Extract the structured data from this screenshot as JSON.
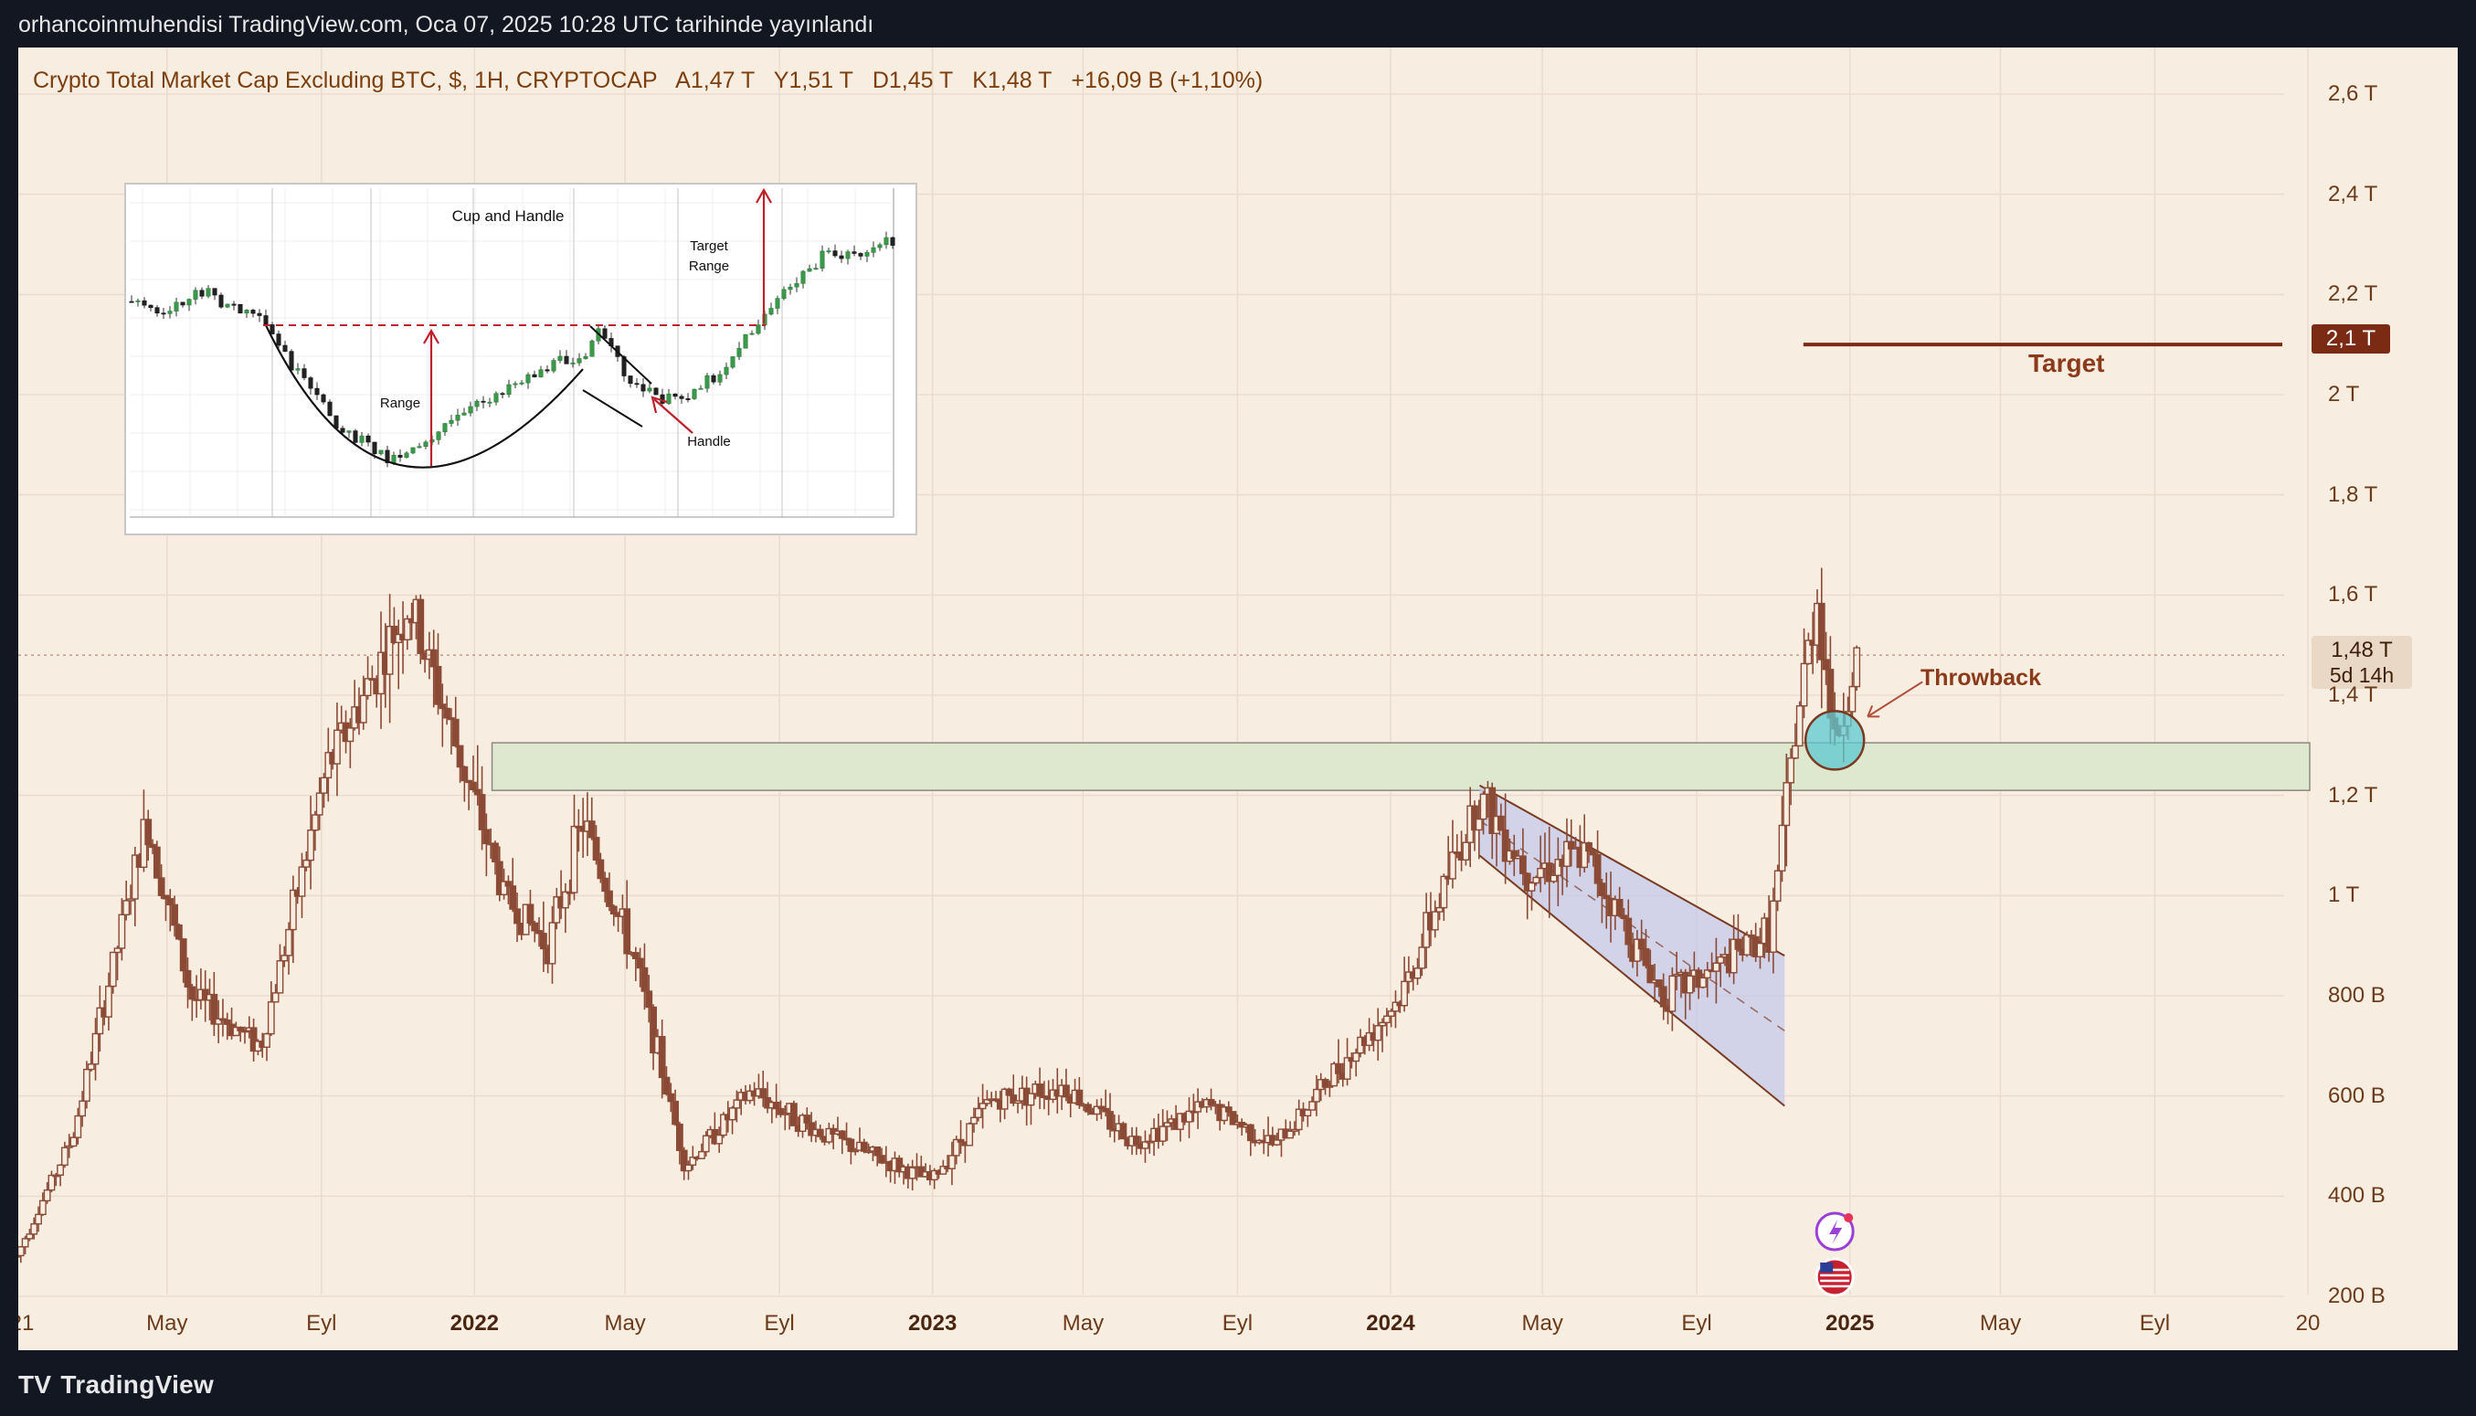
{
  "header": {
    "published_text": "orhancoinmuhendisi TradingView.com, Oca 07, 2025 10:28 UTC tarihinde yayınlandı"
  },
  "legend": {
    "title": "Crypto Total Market Cap Excluding BTC, $, 1H, CRYPTOCAP",
    "open": "A1,47 T",
    "high": "Y1,51 T",
    "low": "D1,45 T",
    "close": "K1,48 T",
    "change": "+16,09 B (+1,10%)"
  },
  "badges": {
    "target_price": "2,1 T",
    "last_price": "1,48 T",
    "countdown": "5d 14h"
  },
  "annotations": {
    "target": "Target",
    "throwback": "Throwback"
  },
  "inset": {
    "title": "Cup and Handle",
    "range": "Range",
    "target_range_1": "Target",
    "target_range_2": "Range",
    "handle": "Handle"
  },
  "footer": {
    "brand": "TradingView"
  },
  "colors": {
    "background": "#f8ede1",
    "candle": "#8b4a35",
    "target_line": "#7b2a14",
    "zone_fill": "#dde8cf",
    "channel_fill": "#c6c8ea",
    "throwback_circle": "#5cc8d0"
  },
  "chart_data": {
    "type": "candlestick",
    "title": "Crypto Total Market Cap Excluding BTC, $, 1H, CRYPTOCAP",
    "y_unit": "USD",
    "ylim": [
      200,
      2600
    ],
    "y_ticks": [
      "200 B",
      "400 B",
      "600 B",
      "800 B",
      "1 T",
      "1,2 T",
      "1,4 T",
      "1,6 T",
      "1,8 T",
      "2 T",
      "2,2 T",
      "2,4 T",
      "2,6 T"
    ],
    "y_tick_values": [
      200,
      400,
      600,
      800,
      1000,
      1200,
      1400,
      1600,
      1800,
      2000,
      2200,
      2400,
      2600
    ],
    "x_ticks": [
      "21",
      "May",
      "Eyl",
      "2022",
      "May",
      "Eyl",
      "2023",
      "May",
      "Eyl",
      "2024",
      "May",
      "Eyl",
      "2025",
      "May",
      "Eyl",
      "20"
    ],
    "x_tick_dates": [
      "2021-01-01",
      "2021-05-01",
      "2021-09-01",
      "2022-01-01",
      "2022-05-01",
      "2022-09-01",
      "2023-01-01",
      "2023-05-01",
      "2023-09-01",
      "2024-01-01",
      "2024-05-01",
      "2024-09-01",
      "2025-01-01",
      "2025-05-01",
      "2025-09-01",
      "2026-01-01"
    ],
    "series_path_billions": [
      [
        "2021-01-01",
        280
      ],
      [
        "2021-02-15",
        520
      ],
      [
        "2021-04-15",
        1150
      ],
      [
        "2021-05-20",
        800
      ],
      [
        "2021-07-15",
        700
      ],
      [
        "2021-09-05",
        1250
      ],
      [
        "2021-11-10",
        1580
      ],
      [
        "2021-12-20",
        1280
      ],
      [
        "2022-01-25",
        1000
      ],
      [
        "2022-03-01",
        900
      ],
      [
        "2022-03-28",
        1150
      ],
      [
        "2022-05-10",
        860
      ],
      [
        "2022-06-18",
        460
      ],
      [
        "2022-08-10",
        610
      ],
      [
        "2022-10-01",
        530
      ],
      [
        "2022-11-15",
        480
      ],
      [
        "2022-12-31",
        430
      ],
      [
        "2023-02-15",
        590
      ],
      [
        "2023-04-15",
        620
      ],
      [
        "2023-06-10",
        510
      ],
      [
        "2023-08-10",
        580
      ],
      [
        "2023-10-01",
        500
      ],
      [
        "2023-11-15",
        640
      ],
      [
        "2024-01-10",
        800
      ],
      [
        "2024-03-12",
        1200
      ],
      [
        "2024-04-20",
        1050
      ],
      [
        "2024-06-05",
        1080
      ],
      [
        "2024-08-05",
        800
      ],
      [
        "2024-09-15",
        850
      ],
      [
        "2024-10-30",
        930
      ],
      [
        "2024-11-20",
        1350
      ],
      [
        "2024-12-06",
        1600
      ],
      [
        "2024-12-20",
        1300
      ],
      [
        "2025-01-07",
        1480
      ]
    ],
    "annotations": {
      "target_line": {
        "value": 2100,
        "label": "Target"
      },
      "support_zone": {
        "low": 1210,
        "high": 1305
      },
      "throwback": {
        "date": "2024-12-20",
        "value": 1310,
        "label": "Throwback"
      },
      "descending_channel": {
        "start": "2024-03-12",
        "end": "2024-11-10"
      }
    }
  }
}
